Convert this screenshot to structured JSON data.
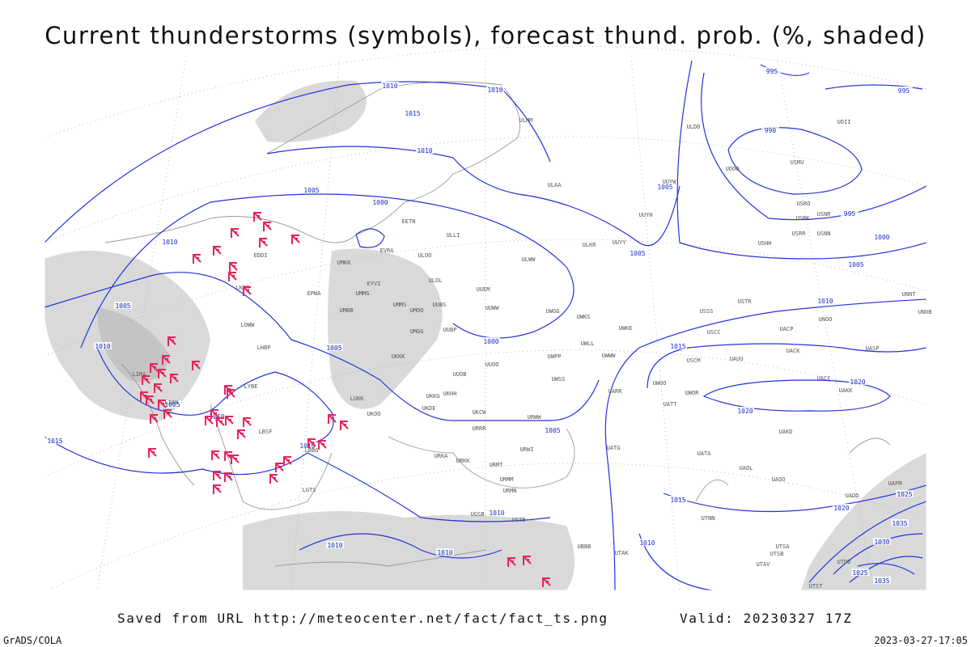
{
  "header": {
    "title": "Current thunderstorms (symbols), forecast thund. prob. (%, shaded)"
  },
  "footer": {
    "saved": "Saved from URL http://meteocenter.net/fact/fact_ts.png",
    "valid": "Valid: 20230327 17Z",
    "credit": "GrADS/COLA",
    "timestamp": "2023-03-27-17:05"
  },
  "isobar_labels": [
    "1010",
    "1010",
    "1015",
    "1010",
    "1005",
    "1000",
    "1010",
    "1005",
    "1010",
    "1005",
    "1000",
    "1005",
    "1005",
    "995",
    "995",
    "990",
    "995",
    "1000",
    "1005",
    "1010",
    "1015",
    "1020",
    "1020",
    "1005",
    "1005",
    "1010",
    "1015",
    "1010",
    "1010",
    "1010",
    "1010",
    "1015",
    "1010",
    "1025",
    "1020",
    "1035",
    "1030",
    "1025",
    "1035"
  ],
  "stations": [
    "ULAA",
    "UUYY",
    "ULLI",
    "EETN",
    "EVRA",
    "ULOO",
    "UMKK",
    "ULOL",
    "UUEM",
    "EYVI",
    "UMMG",
    "UMMS",
    "UMOO",
    "UUBS",
    "UUWW",
    "UMBB",
    "EPWA",
    "UMGG",
    "UUBP",
    "UKKK",
    "UUOO",
    "UUOB",
    "UKHH",
    "UKKG",
    "UKDE",
    "UKCW",
    "UKOO",
    "LUKK",
    "URRR",
    "URWI",
    "URKA",
    "URKK",
    "URMT",
    "URMM",
    "URMN",
    "UGSB",
    "UGTB",
    "UBBB",
    "UTAK",
    "ULKR",
    "ULWW",
    "UWGG",
    "UWKS",
    "UWKE",
    "UWPP",
    "UWLL",
    "UWWW",
    "UWSS",
    "URWW",
    "UARR",
    "UATG",
    "UATT",
    "UWOR",
    "UWOO",
    "UACC",
    "UAKK",
    "UAKD",
    "UATA",
    "UAOL",
    "UAOO",
    "UADD",
    "UAFM",
    "UTNN",
    "USSS",
    "USCC",
    "UAUU",
    "USCM",
    "USTR",
    "USHH",
    "USRR",
    "USNN",
    "USRK",
    "USRO",
    "USNR",
    "USMU",
    "UOOO",
    "UOII",
    "ULDD",
    "ULMM",
    "UUYH",
    "UUYW",
    "UACP",
    "UACK",
    "UNOO",
    "UASP",
    "UNNT",
    "UNBB",
    "UTSA",
    "UTSB",
    "UTAV",
    "UTST",
    "UTDD",
    "LBSF",
    "LBBG",
    "LGTS",
    "LYBE",
    "LHBP",
    "LOWW",
    "LKPR",
    "EDDI",
    "LIRA",
    "LIRN"
  ]
}
